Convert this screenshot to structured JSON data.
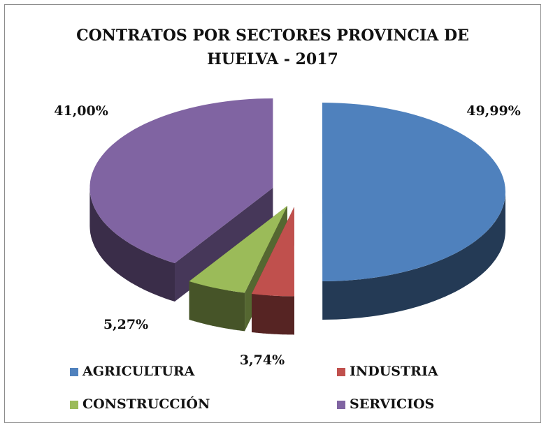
{
  "chart_data": {
    "type": "pie",
    "title": "CONTRATOS POR SECTORES PROVINCIA DE HUELVA - 2017",
    "categories": [
      "AGRICULTURA",
      "INDUSTRIA",
      "CONSTRUCCIÓN",
      "SERVICIOS"
    ],
    "values": [
      49.99,
      3.74,
      5.27,
      41.0
    ],
    "value_labels": [
      "49,99%",
      "3,74%",
      "5,27%",
      "41,00%"
    ],
    "colors": [
      "#4f81bd",
      "#c0504d",
      "#9bbb59",
      "#8064a2"
    ],
    "legend": "bottom"
  }
}
